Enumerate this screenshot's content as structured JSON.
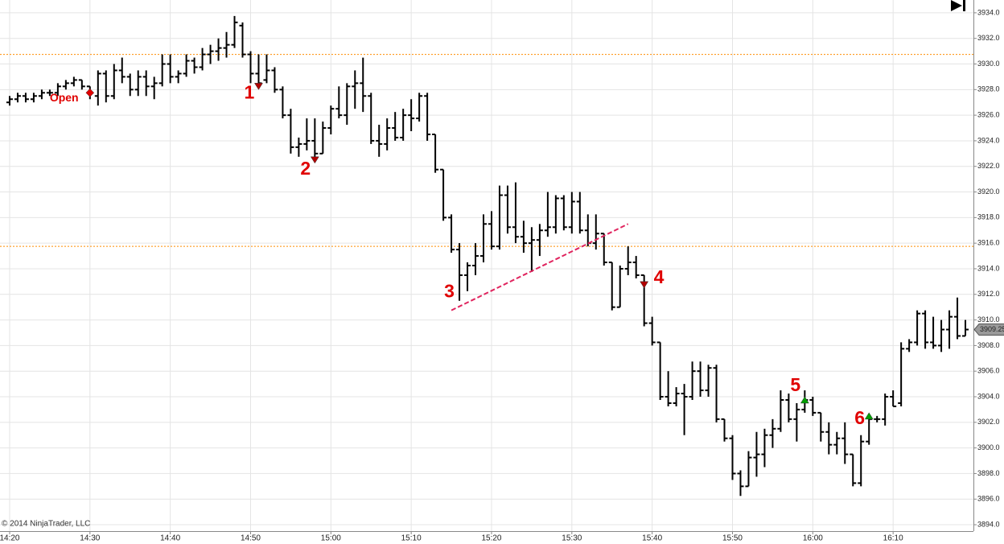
{
  "chart_data": {
    "type": "ohlc",
    "x": [
      860,
      861,
      862,
      863,
      864,
      865,
      866,
      867,
      868,
      869,
      870,
      871,
      872,
      873,
      874,
      875,
      876,
      877,
      878,
      879,
      880,
      881,
      882,
      883,
      884,
      885,
      886,
      887,
      888,
      889,
      890,
      891,
      892,
      893,
      894,
      895,
      896,
      897,
      898,
      899,
      900,
      901,
      902,
      903,
      904,
      905,
      906,
      907,
      908,
      909,
      910,
      911,
      912,
      913,
      914,
      915,
      916,
      917,
      918,
      919,
      920,
      921,
      922,
      923,
      924,
      925,
      926,
      927,
      928,
      929,
      930,
      931,
      932,
      933,
      934,
      935,
      936,
      937,
      938,
      939,
      940,
      941,
      942,
      943,
      944,
      945,
      946,
      947,
      948,
      949,
      950,
      951,
      952,
      953,
      954,
      955,
      956,
      957,
      958,
      959,
      960,
      961,
      962,
      963,
      964,
      965,
      966,
      967,
      968,
      969,
      970,
      971,
      972,
      973,
      974,
      975,
      976,
      977,
      978,
      979
    ],
    "open": [
      3927,
      3927.25,
      3927.5,
      3927.25,
      3927.5,
      3927.75,
      3927.75,
      3928.25,
      3928.5,
      3928.75,
      3928.25,
      3927.5,
      3929.25,
      3927.5,
      3929.5,
      3929,
      3928,
      3929,
      3928.25,
      3928.5,
      3930,
      3929,
      3929.25,
      3930.25,
      3929.75,
      3930.75,
      3931,
      3931.25,
      3931.5,
      3933,
      3930.75,
      3929.25,
      3928.75,
      3929.5,
      3928,
      3926,
      3923.5,
      3923.75,
      3924,
      3923,
      3925,
      3926.5,
      3926,
      3928.25,
      3928.5,
      3927.5,
      3924,
      3923.75,
      3925,
      3924.25,
      3926,
      3925.75,
      3927.5,
      3924.5,
      3921.75,
      3918,
      3915.5,
      3913.5,
      3914.25,
      3915,
      3917.5,
      3915.75,
      3919.75,
      3917.25,
      3916.5,
      3916,
      3916.25,
      3917,
      3917.25,
      3919.5,
      3917.25,
      3919.25,
      3917,
      3916,
      3916.75,
      3914.5,
      3911,
      3914,
      3914.5,
      3913.5,
      3909.75,
      3908.25,
      3904,
      3903.5,
      3904.25,
      3904,
      3906,
      3904.5,
      3906.25,
      3902.25,
      3900.75,
      3898,
      3897,
      3899.25,
      3899.5,
      3901,
      3901.5,
      3903.75,
      3902.25,
      3903,
      3903.75,
      3902.75,
      3901.25,
      3900.25,
      3900.75,
      3899.5,
      3897.25,
      3900.5,
      3902.25,
      3902.25,
      3904,
      3903.5,
      3907.75,
      3908.25,
      3910.5,
      3908.25,
      3908,
      3909.25,
      3910.25,
      3908.75
    ],
    "high": [
      3927.5,
      3927.75,
      3927.75,
      3927.75,
      3928,
      3928,
      3928.5,
      3928.75,
      3929,
      3928.75,
      3928.25,
      3929.5,
      3929.5,
      3930,
      3930.5,
      3929.25,
      3929.5,
      3929.5,
      3929,
      3930.75,
      3930.75,
      3929.5,
      3930.75,
      3930.5,
      3931.25,
      3931.5,
      3932,
      3932.5,
      3933.75,
      3933.25,
      3931,
      3930.75,
      3930.75,
      3929.75,
      3928.25,
      3926.5,
      3924.25,
      3925.75,
      3925.75,
      3925.5,
      3926.75,
      3928.25,
      3928.5,
      3929.5,
      3930.5,
      3927.75,
      3925.25,
      3925.75,
      3926.25,
      3926.5,
      3927.25,
      3927.75,
      3927.75,
      3924.5,
      3921.75,
      3918.25,
      3916,
      3914.5,
      3916,
      3918.25,
      3918.5,
      3920.5,
      3920.5,
      3920.75,
      3917.75,
      3917.25,
      3917.5,
      3920,
      3919.75,
      3919.75,
      3920,
      3920,
      3918.25,
      3918.25,
      3916.75,
      3914.5,
      3914.25,
      3915.75,
      3915,
      3913.5,
      3910.25,
      3908.25,
      3906,
      3904.75,
      3905,
      3906.75,
      3906.75,
      3906.5,
      3906.5,
      3902.25,
      3901,
      3898.25,
      3899.75,
      3901.25,
      3901.5,
      3902.25,
      3904.5,
      3904.25,
      3903.5,
      3904.5,
      3904,
      3902.75,
      3902,
      3901.25,
      3902,
      3899.5,
      3901,
      3902.5,
      3902.5,
      3904.25,
      3904.5,
      3908.25,
      3908.5,
      3910.75,
      3910.75,
      3910.25,
      3910,
      3910.75,
      3911.75,
      3910
    ],
    "low": [
      3926.75,
      3927,
      3927,
      3927,
      3927.25,
      3927.5,
      3927.5,
      3928,
      3928.25,
      3928,
      3927.25,
      3926.75,
      3927,
      3927.25,
      3928.5,
      3927.5,
      3927.5,
      3927.5,
      3927.25,
      3928.25,
      3928.5,
      3928.5,
      3929,
      3929.25,
      3929.5,
      3930,
      3930.25,
      3930.5,
      3931.25,
      3930.5,
      3928.5,
      3928.5,
      3928.5,
      3927.75,
      3925.75,
      3923,
      3922.75,
      3923.25,
      3922.5,
      3923,
      3924.5,
      3925.75,
      3925.25,
      3926.5,
      3926.25,
      3923.75,
      3922.75,
      3923.25,
      3924,
      3924,
      3924.75,
      3925.5,
      3924,
      3921.5,
      3917.75,
      3915.25,
      3911.5,
      3912.25,
      3913.5,
      3914.5,
      3915.5,
      3915.5,
      3916.75,
      3916,
      3915.25,
      3913.75,
      3915,
      3916.5,
      3916.75,
      3917,
      3916.75,
      3916.75,
      3915.75,
      3915.5,
      3914.25,
      3910.75,
      3911,
      3913.5,
      3913.25,
      3909.5,
      3908,
      3903.75,
      3903.25,
      3903.25,
      3901,
      3903.75,
      3904,
      3904,
      3902,
      3900.5,
      3897.5,
      3896.25,
      3897,
      3897.75,
      3898.5,
      3900,
      3901.25,
      3902,
      3900.5,
      3902.75,
      3902.5,
      3900.5,
      3899.5,
      3899.5,
      3898.75,
      3897,
      3897,
      3900.25,
      3902,
      3901.75,
      3903.25,
      3903.25,
      3907.5,
      3908,
      3907.75,
      3907.75,
      3907.5,
      3907.75,
      3908.5,
      3908.75
    ],
    "close": [
      3927.25,
      3927.5,
      3927.25,
      3927.5,
      3927.75,
      3927.75,
      3928.25,
      3928.5,
      3928.75,
      3928.25,
      3927.75,
      3929.25,
      3927.5,
      3929.5,
      3929,
      3928,
      3929,
      3928.25,
      3928.5,
      3930,
      3929,
      3929.25,
      3930.25,
      3929.75,
      3930.75,
      3931,
      3931.25,
      3931.5,
      3933.25,
      3930.75,
      3929.25,
      3928.5,
      3929.5,
      3928,
      3926,
      3923.5,
      3923.75,
      3924,
      3923,
      3925,
      3926.5,
      3926,
      3928.25,
      3928.5,
      3927.5,
      3924,
      3923.75,
      3925,
      3924.25,
      3926,
      3925.75,
      3927.5,
      3924.5,
      3921.75,
      3918,
      3915.5,
      3913.5,
      3914.25,
      3915,
      3917.5,
      3915.75,
      3919.75,
      3917.25,
      3916.5,
      3916,
      3916.25,
      3917,
      3917.25,
      3919.5,
      3917.25,
      3919.25,
      3917,
      3916,
      3916.75,
      3914.5,
      3911,
      3914,
      3914.5,
      3913.5,
      3909.75,
      3908.25,
      3904,
      3903.5,
      3904.25,
      3904,
      3906,
      3904.5,
      3906.25,
      3902.25,
      3900.75,
      3898,
      3897,
      3899.25,
      3899.5,
      3901,
      3901.5,
      3903.75,
      3902.25,
      3903,
      3903.75,
      3902.75,
      3901.25,
      3900.25,
      3900.75,
      3899.5,
      3897.25,
      3900.5,
      3902.25,
      3902.25,
      3904,
      3903.25,
      3907.75,
      3908.25,
      3910.5,
      3908.25,
      3908,
      3909.25,
      3910.25,
      3908.75,
      3909.25
    ],
    "color": "#000000",
    "xlim": [
      858.8,
      980
    ],
    "ylim": [
      3893.5,
      3935
    ],
    "xticks": [
      {
        "value": 860,
        "label": "14:20"
      },
      {
        "value": 870,
        "label": "14:30"
      },
      {
        "value": 880,
        "label": "14:40"
      },
      {
        "value": 890,
        "label": "14:50"
      },
      {
        "value": 900,
        "label": "15:00"
      },
      {
        "value": 910,
        "label": "15:10"
      },
      {
        "value": 920,
        "label": "15:20"
      },
      {
        "value": 930,
        "label": "15:30"
      },
      {
        "value": 940,
        "label": "15:40"
      },
      {
        "value": 950,
        "label": "15:50"
      },
      {
        "value": 960,
        "label": "16:00"
      },
      {
        "value": 970,
        "label": "16:10"
      }
    ],
    "yticks": [
      {
        "value": 3894,
        "label": "3894.0"
      },
      {
        "value": 3896,
        "label": "3896.0"
      },
      {
        "value": 3898,
        "label": "3898.0"
      },
      {
        "value": 3900,
        "label": "3900.0"
      },
      {
        "value": 3902,
        "label": "3902.0"
      },
      {
        "value": 3904,
        "label": "3904.0"
      },
      {
        "value": 3906,
        "label": "3906.0"
      },
      {
        "value": 3908,
        "label": "3908.0"
      },
      {
        "value": 3910,
        "label": "3910.0"
      },
      {
        "value": 3912,
        "label": "3912.0"
      },
      {
        "value": 3914,
        "label": "3914.0"
      },
      {
        "value": 3916,
        "label": "3916.0"
      },
      {
        "value": 3918,
        "label": "3918.0"
      },
      {
        "value": 3920,
        "label": "3920.0"
      },
      {
        "value": 3922,
        "label": "3922.0"
      },
      {
        "value": 3924,
        "label": "3924.0"
      },
      {
        "value": 3926,
        "label": "3926.0"
      },
      {
        "value": 3928,
        "label": "3928.0"
      },
      {
        "value": 3930,
        "label": "3930.0"
      },
      {
        "value": 3932,
        "label": "3932.0"
      },
      {
        "value": 3934,
        "label": "3934.0"
      }
    ],
    "grid": true,
    "reference_lines": {
      "values": [
        3930.75,
        3915.75
      ],
      "color": "#ff8c00"
    },
    "trend_line": {
      "x": [
        915,
        937
      ],
      "y": [
        3910.75,
        3917.5
      ],
      "color": "#e0245e",
      "label": "3"
    },
    "markers": [
      {
        "label": "Open",
        "x": 870,
        "y": 3927.75,
        "shape": "diamond",
        "color": "#e00000"
      },
      {
        "label": "1",
        "x": 891,
        "y": 3928.25,
        "shape": "triangle-down",
        "color": "#b00000"
      },
      {
        "label": "2",
        "x": 898,
        "y": 3922.5,
        "shape": "triangle-down",
        "color": "#b00000"
      },
      {
        "label": "4",
        "x": 939,
        "y": 3912.75,
        "shape": "triangle-down",
        "color": "#b00000"
      },
      {
        "label": "5",
        "x": 959,
        "y": 3903.75,
        "shape": "triangle-up",
        "color": "#00a000"
      },
      {
        "label": "6",
        "x": 967,
        "y": 3902.5,
        "shape": "triangle-up",
        "color": "#00a000"
      }
    ],
    "last_price": {
      "value": 3909.25,
      "label": "3909.25"
    },
    "copyright": "© 2014 NinjaTrader, LLC"
  }
}
